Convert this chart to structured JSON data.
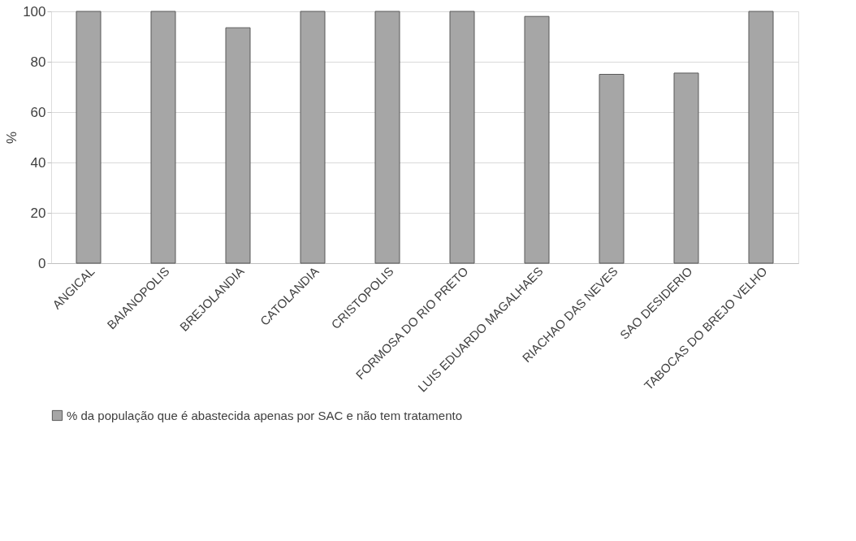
{
  "chart_data": {
    "type": "bar",
    "ylabel": "%",
    "categories": [
      "ANGICAL",
      "BAIANOPOLIS",
      "BREJOLANDIA",
      "CATOLANDIA",
      "CRISTOPOLIS",
      "FORMOSA DO RIO PRETO",
      "LUIS EDUARDO MAGALHAES",
      "RIACHAO DAS NEVES",
      "SAO DESIDERIO",
      "TABOCAS DO BREJO VELHO"
    ],
    "series": [
      {
        "name": "% da população que é abastecida apenas por SAC e não tem tratamento",
        "color": "#a6a6a6",
        "values": [
          100,
          100,
          93.5,
          100,
          100,
          100,
          98,
          75,
          75.5,
          100
        ]
      }
    ],
    "ylim": [
      0,
      100
    ],
    "yticks": [
      0,
      20,
      40,
      60,
      80,
      100
    ],
    "grid": "y",
    "legend": "bottom"
  }
}
